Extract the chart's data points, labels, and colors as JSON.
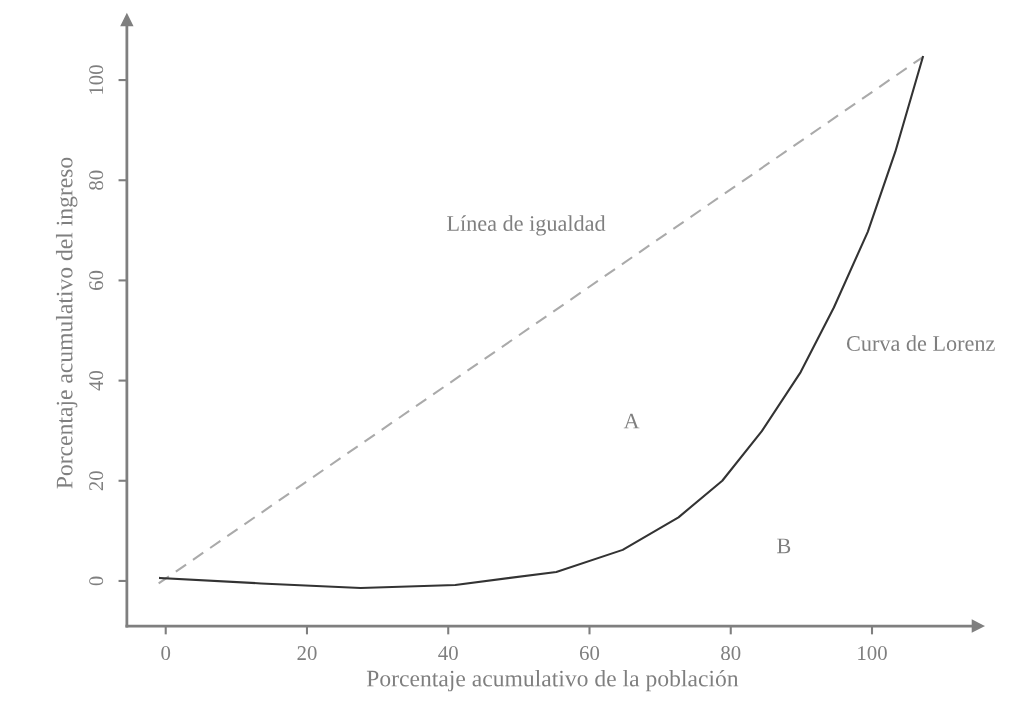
{
  "chart_data": {
    "type": "line",
    "xlabel": "Porcentaje acumulativo de la población",
    "ylabel": "Porcentaje acumulativo del ingreso",
    "x": [
      -0.8,
      13.5,
      27.6,
      41,
      55.3,
      64.7,
      72.6,
      78.8,
      84.4,
      89.9,
      94.6,
      99.4,
      103.3,
      107.2
    ],
    "series": [
      {
        "color": "#aaaaaa",
        "line_style": "dashed",
        "x": [
          -1,
          107.2
        ],
        "values": [
          -0.5,
          104.6
        ]
      },
      {
        "color": "#333333",
        "line_style": "solid",
        "values": [
          0.6,
          -0.5,
          -1.4,
          -0.8,
          1.8,
          6.2,
          12.7,
          20,
          29.9,
          41.7,
          54.6,
          69.7,
          85.7,
          104.6
        ]
      }
    ],
    "annotations": [
      "Línea de igualdad",
      "Curva de Lorenz",
      "A",
      "B"
    ],
    "xlim": [
      -5.5,
      115
    ],
    "ylim": [
      -9,
      112
    ],
    "xticks": [
      0,
      20,
      40,
      60,
      80,
      100
    ],
    "yticks": [
      0,
      20,
      40,
      60,
      80,
      100
    ],
    "grid": false,
    "legend": false,
    "marker": "none"
  }
}
